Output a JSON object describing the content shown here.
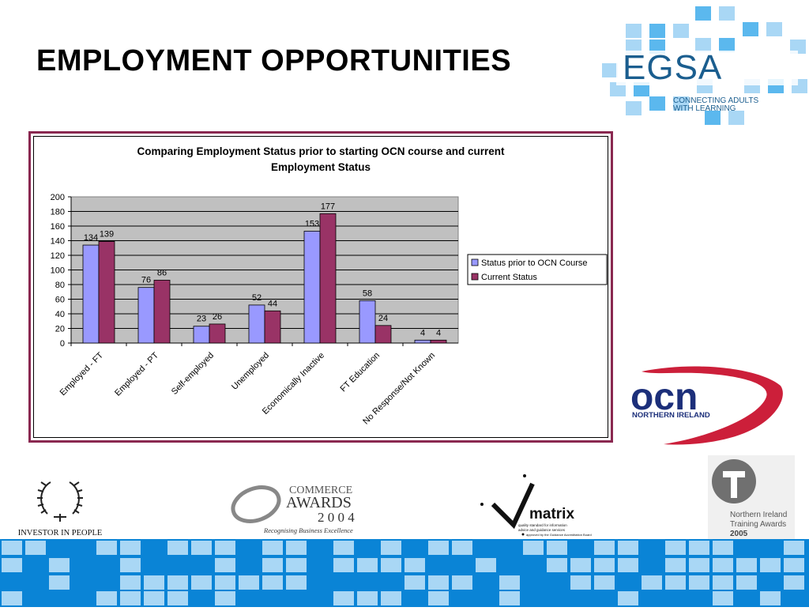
{
  "slide": {
    "title": "EMPLOYMENT OPPORTUNITIES"
  },
  "logos": {
    "egsa": {
      "name": "EGSA",
      "tagline_line1": "CONNECTING ADULTS",
      "tagline_line2": "WITH LEARNING"
    },
    "ocn": {
      "name": "ocn",
      "subtitle": "NORTHERN IRELAND"
    },
    "iip": {
      "caption": "INVESTOR IN PEOPLE"
    },
    "ecommerce": {
      "line1": "COMMERCE",
      "line2": "AWARDS",
      "line3": "2 0 0 4",
      "caption": "Recognising Business Excellence"
    },
    "matrix": {
      "name": "matrix",
      "line1": "quality standard for information",
      "line2": "advice and guidance services",
      "line3": "approved by the Guidance Accreditation Board"
    },
    "ni_training": {
      "line1": "Northern Ireland",
      "line2": "Training Awards",
      "year": "2005"
    }
  },
  "colors": {
    "series1": "#9999ff",
    "series2": "#993366",
    "plot_bg": "#c0c0c0",
    "frame": "#8a2850",
    "tile_blue": "#0a84d6",
    "tile_light": "#a9d7f5"
  },
  "chart_data": {
    "type": "bar",
    "title_line1": "Comparing Employment Status prior to starting OCN course and current",
    "title_line2": "Employment Status",
    "categories": [
      "Employed - FT",
      "Employed - PT",
      "Self-employed",
      "Unemployed",
      "Economically Inactive",
      "FT Education",
      "No Response/Not Known"
    ],
    "series": [
      {
        "name": "Status prior to OCN Course",
        "values": [
          134,
          76,
          23,
          52,
          153,
          58,
          4
        ]
      },
      {
        "name": "Current Status",
        "values": [
          139,
          86,
          26,
          44,
          177,
          24,
          4
        ]
      }
    ],
    "ylim": [
      0,
      200
    ],
    "yticks": [
      0,
      20,
      40,
      60,
      80,
      100,
      120,
      140,
      160,
      180,
      200
    ],
    "grid": true,
    "legend_position": "right"
  }
}
